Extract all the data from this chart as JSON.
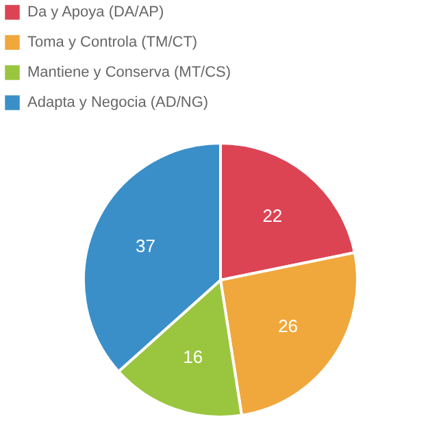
{
  "chart_data": {
    "type": "pie",
    "categories": [
      "Da y Apoya (DA/AP)",
      "Toma y Controla (TM/CT)",
      "Mantiene y Conserva (MT/CS)",
      "Adapta y Negocia (AD/NG)"
    ],
    "values": [
      22,
      26,
      16,
      37
    ],
    "colors": [
      "#dc4454",
      "#f0a83c",
      "#9ac63f",
      "#3a8fc8"
    ],
    "data_labels": true,
    "legend": "top"
  }
}
